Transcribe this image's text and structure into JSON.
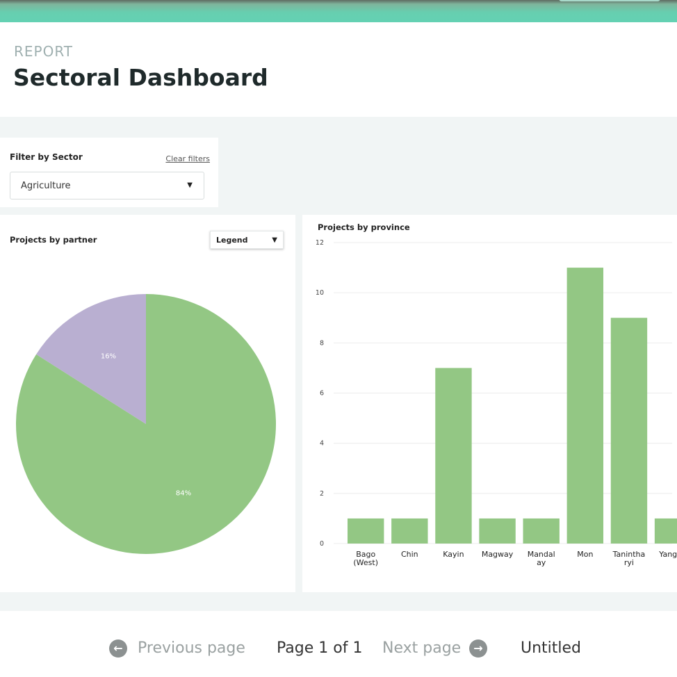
{
  "header": {
    "eyebrow": "REPORT",
    "title": "Sectoral Dashboard"
  },
  "filter": {
    "label": "Filter by Sector",
    "clear_label": "Clear filters",
    "selected_value": "Agriculture"
  },
  "pie_panel": {
    "title": "Projects by partner",
    "legend_button_label": "Legend"
  },
  "bar_panel": {
    "title": "Projects by province"
  },
  "colors": {
    "primary_green": "#93c784",
    "purple": "#b9afd1",
    "accent_teal": "#64d1b3"
  },
  "icons": {
    "prev": "arrow-left-circle-icon",
    "next": "arrow-right-circle-icon",
    "dropdown": "caret-down-icon"
  },
  "footer": {
    "prev_label": "Previous page",
    "page_indicator": "Page 1 of 1",
    "next_label": "Next page",
    "untitled_label": "Untitled"
  },
  "chart_data": [
    {
      "type": "pie",
      "title": "Projects by partner",
      "slices": [
        {
          "label": "84%",
          "value": 84,
          "color": "#93c784"
        },
        {
          "label": "16%",
          "value": 16,
          "color": "#b9afd1"
        }
      ]
    },
    {
      "type": "bar",
      "title": "Projects by province",
      "categories": [
        "Bago (West)",
        "Chin",
        "Kayin",
        "Magway",
        "Mandalay",
        "Mon",
        "Tanintharyi",
        "Yangon"
      ],
      "category_lines": [
        [
          "Bago",
          "(West)"
        ],
        [
          "Chin"
        ],
        [
          "Kayin"
        ],
        [
          "Magway"
        ],
        [
          "Mandal",
          "ay"
        ],
        [
          "Mon"
        ],
        [
          "Tanintha",
          "ryi"
        ],
        [
          "Yangon"
        ]
      ],
      "values": [
        1,
        1,
        7,
        1,
        1,
        11,
        9,
        1
      ],
      "ylim": [
        0,
        12
      ],
      "yticks": [
        "0",
        "2",
        "4",
        "6",
        "8",
        "10",
        "12"
      ],
      "grid": true,
      "color": "#93c784"
    }
  ]
}
